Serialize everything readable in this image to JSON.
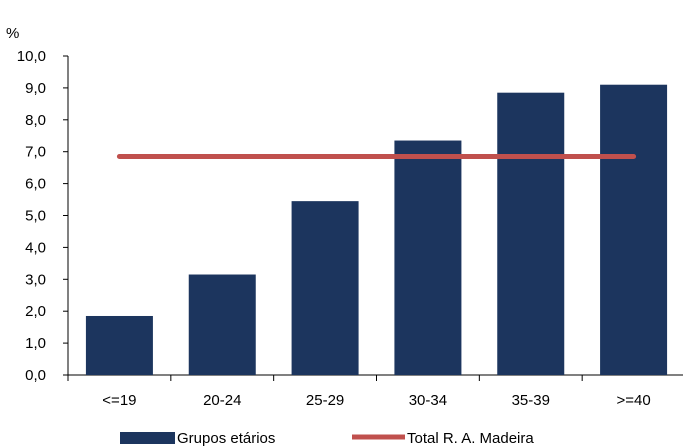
{
  "chart_data": {
    "type": "bar",
    "ylabel": "%",
    "categories": [
      "<=19",
      "20-24",
      "25-29",
      "30-34",
      "35-39",
      ">=40"
    ],
    "series": [
      {
        "name": "Grupos etários",
        "type": "bar",
        "color": "#1c355e",
        "values": [
          1.85,
          3.15,
          5.45,
          7.35,
          8.85,
          9.1
        ]
      },
      {
        "name": "Total R. A. Madeira",
        "type": "line",
        "color": "#c0504d",
        "values": [
          6.85,
          6.85,
          6.85,
          6.85,
          6.85,
          6.85
        ]
      }
    ],
    "ylim": [
      0,
      10
    ],
    "yticks": [
      "0,0",
      "1,0",
      "2,0",
      "3,0",
      "4,0",
      "5,0",
      "6,0",
      "7,0",
      "8,0",
      "9,0",
      "10,0"
    ],
    "grid": false,
    "legend": "bottom"
  }
}
